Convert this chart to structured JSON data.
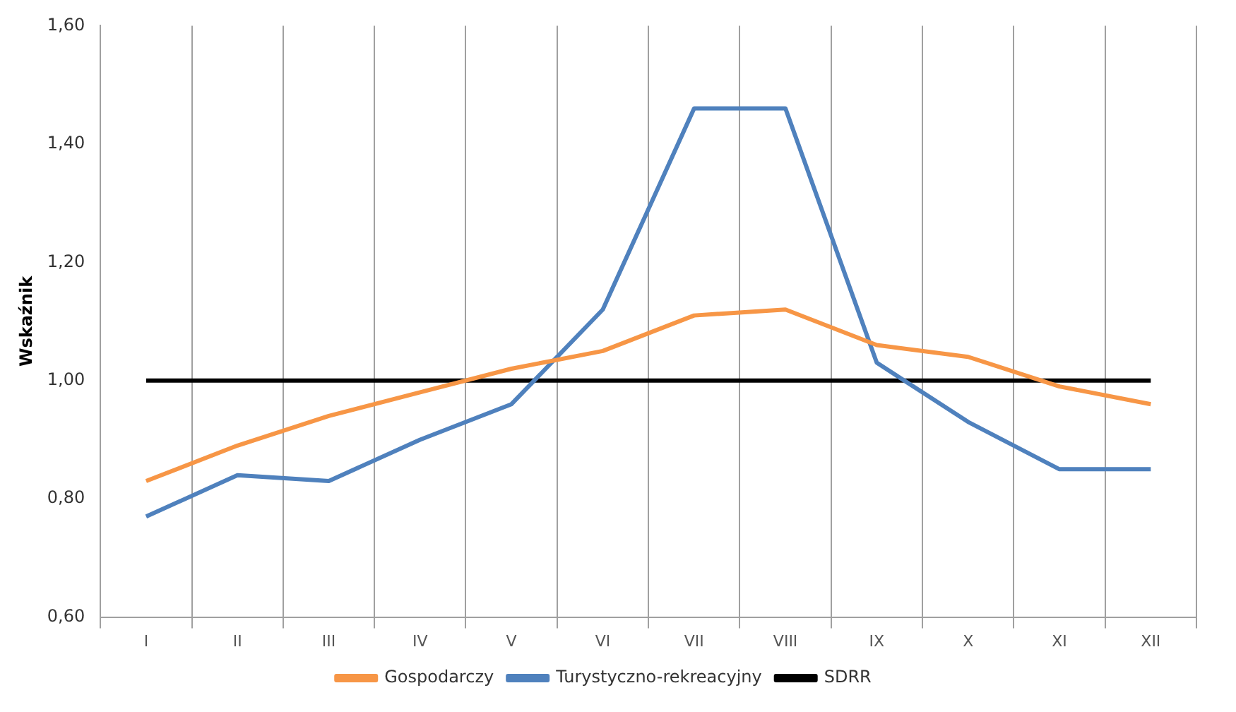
{
  "chart_data": {
    "type": "line",
    "ylabel": "Wskaźnik",
    "categories": [
      "I",
      "II",
      "III",
      "IV",
      "V",
      "VI",
      "VII",
      "VIII",
      "IX",
      "X",
      "XI",
      "XII"
    ],
    "series": [
      {
        "name": "Gospodarczy",
        "color": "#f79646",
        "values": [
          0.83,
          0.89,
          0.94,
          0.98,
          1.02,
          1.05,
          1.11,
          1.12,
          1.06,
          1.04,
          0.99,
          0.96
        ]
      },
      {
        "name": "Turystyczno-rekreacyjny",
        "color": "#4f81bd",
        "values": [
          0.77,
          0.84,
          0.83,
          0.9,
          0.96,
          1.12,
          1.46,
          1.46,
          1.03,
          0.93,
          0.85,
          0.85
        ]
      },
      {
        "name": "SDRR",
        "color": "#000000",
        "values": [
          1,
          1,
          1,
          1,
          1,
          1,
          1,
          1,
          1,
          1,
          1,
          1
        ]
      }
    ],
    "ylim": [
      0.6,
      1.6
    ],
    "yticks": [
      {
        "value": 0.6,
        "label": "0,60"
      },
      {
        "value": 0.8,
        "label": "0,80"
      },
      {
        "value": 1.0,
        "label": "1,00"
      },
      {
        "value": 1.2,
        "label": "1,20"
      },
      {
        "value": 1.4,
        "label": "1,40"
      },
      {
        "value": 1.6,
        "label": "1,60"
      }
    ],
    "grid": "x",
    "legend": "bottom",
    "marker": "none",
    "line_style": "solid"
  }
}
